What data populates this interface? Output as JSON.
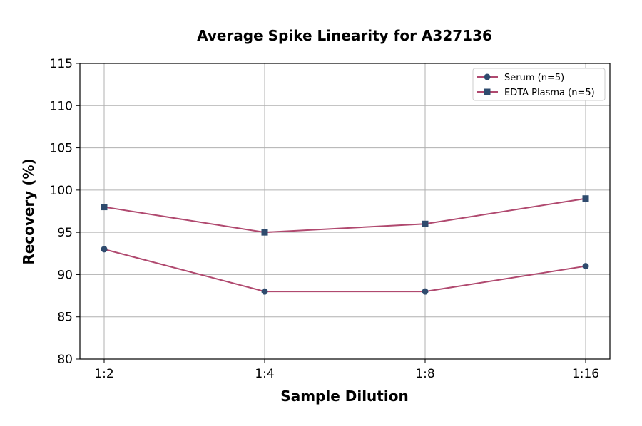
{
  "chart_data": {
    "type": "line",
    "title": "Average Spike Linearity for A327136",
    "xlabel": "Sample Dilution",
    "ylabel": "Recovery (%)",
    "categories": [
      "1:2",
      "1:4",
      "1:8",
      "1:16"
    ],
    "ylim": [
      80,
      115
    ],
    "yticks": [
      80,
      85,
      90,
      95,
      100,
      105,
      110,
      115
    ],
    "grid": true,
    "legend_position": "top-right",
    "series": [
      {
        "name": "Serum (n=5)",
        "values": [
          93,
          88,
          88,
          91
        ],
        "marker": "circle"
      },
      {
        "name": "EDTA Plasma (n=5)",
        "values": [
          98,
          95,
          96,
          99
        ],
        "marker": "square"
      }
    ],
    "colors": {
      "line": "#b0496f",
      "marker": "#2f4b6e",
      "grid": "#b0b0b0"
    }
  }
}
